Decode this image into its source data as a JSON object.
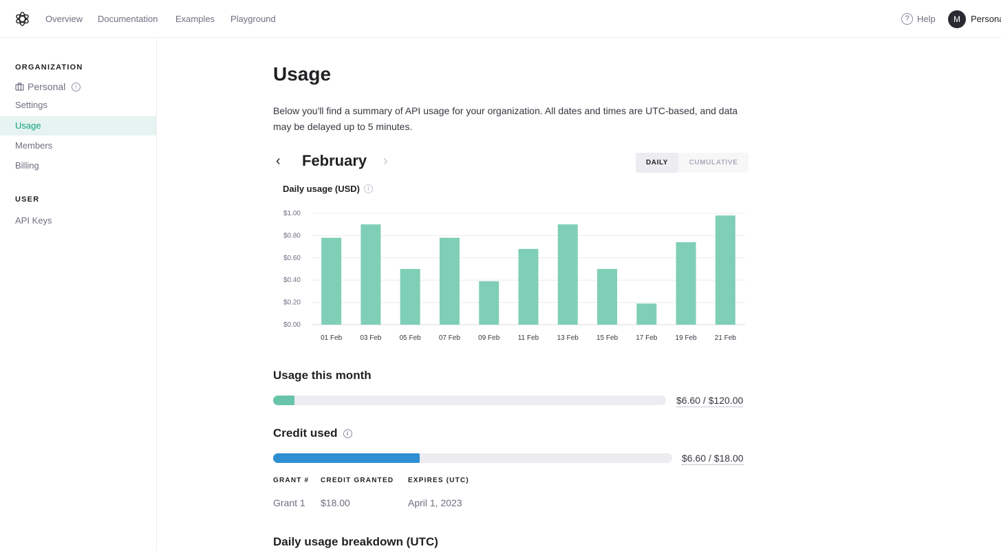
{
  "nav": {
    "links": [
      "Overview",
      "Documentation",
      "Examples",
      "Playground"
    ],
    "help_label": "Help",
    "avatar_initial": "M",
    "account_name": "Personal"
  },
  "sidebar": {
    "org_heading": "ORGANIZATION",
    "org_name": "Personal",
    "org_items": [
      "Settings",
      "Usage",
      "Members",
      "Billing"
    ],
    "active_item": "Usage",
    "user_heading": "USER",
    "user_items": [
      "API Keys"
    ]
  },
  "main": {
    "title": "Usage",
    "intro": "Below you'll find a summary of API usage for your organization. All dates and times are UTC-based, and data may be delayed up to 5 minutes.",
    "month": "February",
    "toggle": {
      "daily": "DAILY",
      "cumulative": "CUMULATIVE",
      "selected": "DAILY"
    },
    "chart_title": "Daily usage (USD)",
    "usage_month": {
      "title": "Usage this month",
      "amount": "$6.60 / $120.00",
      "fraction": 0.055
    },
    "credit": {
      "title": "Credit used",
      "amount": "$6.60 / $18.00",
      "fraction": 0.367
    },
    "grants": {
      "headers": [
        "GRANT #",
        "CREDIT GRANTED",
        "EXPIRES (UTC)"
      ],
      "rows": [
        [
          "Grant 1",
          "$18.00",
          "April 1, 2023"
        ]
      ]
    },
    "breakdown_title": "Daily usage breakdown (UTC)"
  },
  "colors": {
    "accent": "#10a37f",
    "bar": "#7fcfb6",
    "usage_fill": "#68c4a8",
    "credit_fill": "#2f8fd3"
  },
  "chart_data": {
    "type": "bar",
    "title": "Daily usage (USD)",
    "categories": [
      "01 Feb",
      "03 Feb",
      "05 Feb",
      "07 Feb",
      "09 Feb",
      "11 Feb",
      "13 Feb",
      "15 Feb",
      "17 Feb",
      "19 Feb",
      "21 Feb"
    ],
    "values": [
      0.78,
      0.9,
      0.5,
      0.78,
      0.39,
      0.68,
      0.9,
      0.5,
      0.19,
      0.74,
      0.98
    ],
    "yticks": [
      "$0.00",
      "$0.20",
      "$0.40",
      "$0.60",
      "$0.80",
      "$1.00"
    ],
    "ylim": [
      0,
      1
    ],
    "grid": true
  }
}
